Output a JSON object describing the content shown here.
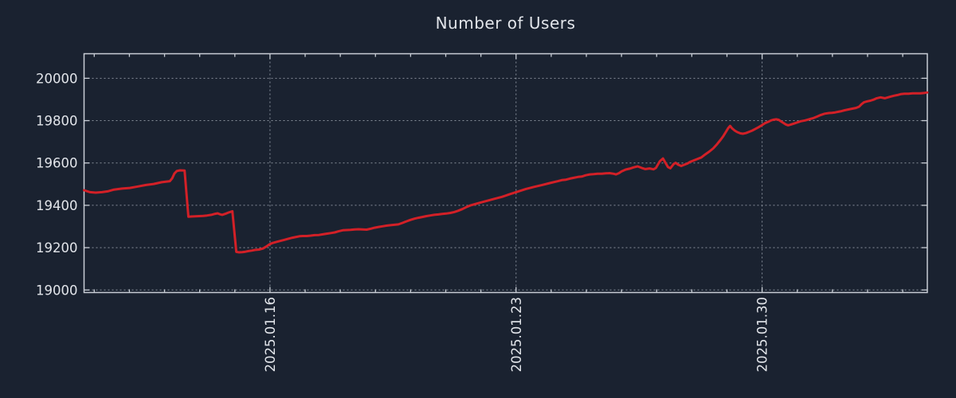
{
  "colors": {
    "background": "#1a2230",
    "plot_border": "#c8cdd5",
    "grid": "#a2a9b4",
    "text": "#e2e5ea",
    "series_red": "#d32027"
  },
  "chart_data": {
    "type": "line",
    "title": "Number of Users",
    "xlabel": "",
    "ylabel": "",
    "legend": "none",
    "grid_style": "dotted",
    "x_axis": {
      "kind": "time",
      "origin_date": "2025-01-10",
      "units": "days_since_origin",
      "range": [
        0.71,
        24.7
      ],
      "major_ticks": [
        {
          "d": 6,
          "label": "2025.01.16"
        },
        {
          "d": 13,
          "label": "2025.01.23"
        },
        {
          "d": 20,
          "label": "2025.01.30"
        }
      ],
      "minor_tick_interval_days": 1,
      "grid": true
    },
    "y_axis": {
      "range": [
        18988,
        20116
      ],
      "tick_values": [
        19000,
        19200,
        19400,
        19600,
        19800,
        20000
      ],
      "tick_step": 200,
      "grid": true
    },
    "series": [
      {
        "name": "Number of Users",
        "color": "#d32027",
        "points": [
          [
            0.71,
            19471
          ],
          [
            0.88,
            19462
          ],
          [
            1.04,
            19460
          ],
          [
            1.22,
            19462
          ],
          [
            1.38,
            19466
          ],
          [
            1.56,
            19474
          ],
          [
            1.79,
            19479
          ],
          [
            2.01,
            19482
          ],
          [
            2.24,
            19489
          ],
          [
            2.47,
            19496
          ],
          [
            2.69,
            19501
          ],
          [
            2.92,
            19509
          ],
          [
            3.15,
            19514
          ],
          [
            3.22,
            19528
          ],
          [
            3.28,
            19550
          ],
          [
            3.35,
            19562
          ],
          [
            3.44,
            19565
          ],
          [
            3.57,
            19564
          ],
          [
            3.68,
            19346
          ],
          [
            3.76,
            19347
          ],
          [
            3.87,
            19348
          ],
          [
            3.99,
            19349
          ],
          [
            4.1,
            19350
          ],
          [
            4.21,
            19352
          ],
          [
            4.33,
            19355
          ],
          [
            4.44,
            19360
          ],
          [
            4.51,
            19362
          ],
          [
            4.57,
            19358
          ],
          [
            4.64,
            19355
          ],
          [
            4.73,
            19360
          ],
          [
            4.82,
            19366
          ],
          [
            4.93,
            19372
          ],
          [
            5.04,
            19180
          ],
          [
            5.12,
            19178
          ],
          [
            5.21,
            19179
          ],
          [
            5.3,
            19181
          ],
          [
            5.39,
            19184
          ],
          [
            5.48,
            19186
          ],
          [
            5.57,
            19189
          ],
          [
            5.69,
            19191
          ],
          [
            5.8,
            19196
          ],
          [
            5.89,
            19205
          ],
          [
            5.98,
            19215
          ],
          [
            6.07,
            19222
          ],
          [
            6.18,
            19227
          ],
          [
            6.3,
            19232
          ],
          [
            6.41,
            19237
          ],
          [
            6.52,
            19242
          ],
          [
            6.64,
            19247
          ],
          [
            6.75,
            19251
          ],
          [
            6.84,
            19254
          ],
          [
            6.93,
            19255
          ],
          [
            7.05,
            19255
          ],
          [
            7.16,
            19257
          ],
          [
            7.27,
            19259
          ],
          [
            7.39,
            19260
          ],
          [
            7.5,
            19263
          ],
          [
            7.61,
            19266
          ],
          [
            7.73,
            19269
          ],
          [
            7.84,
            19272
          ],
          [
            7.95,
            19277
          ],
          [
            8.07,
            19282
          ],
          [
            8.18,
            19283
          ],
          [
            8.29,
            19284
          ],
          [
            8.41,
            19286
          ],
          [
            8.52,
            19287
          ],
          [
            8.63,
            19286
          ],
          [
            8.75,
            19285
          ],
          [
            8.86,
            19289
          ],
          [
            8.97,
            19294
          ],
          [
            9.09,
            19298
          ],
          [
            9.2,
            19301
          ],
          [
            9.31,
            19304
          ],
          [
            9.43,
            19306
          ],
          [
            9.54,
            19308
          ],
          [
            9.65,
            19310
          ],
          [
            9.77,
            19317
          ],
          [
            9.88,
            19324
          ],
          [
            9.99,
            19331
          ],
          [
            10.11,
            19337
          ],
          [
            10.22,
            19341
          ],
          [
            10.33,
            19345
          ],
          [
            10.45,
            19349
          ],
          [
            10.56,
            19352
          ],
          [
            10.67,
            19355
          ],
          [
            10.79,
            19357
          ],
          [
            10.9,
            19359
          ],
          [
            11.01,
            19361
          ],
          [
            11.13,
            19364
          ],
          [
            11.24,
            19368
          ],
          [
            11.35,
            19374
          ],
          [
            11.47,
            19382
          ],
          [
            11.58,
            19391
          ],
          [
            11.69,
            19399
          ],
          [
            11.92,
            19410
          ],
          [
            12.15,
            19420
          ],
          [
            12.37,
            19430
          ],
          [
            12.6,
            19440
          ],
          [
            12.83,
            19453
          ],
          [
            13.06,
            19465
          ],
          [
            13.28,
            19477
          ],
          [
            13.51,
            19487
          ],
          [
            13.74,
            19496
          ],
          [
            13.96,
            19505
          ],
          [
            14.19,
            19514
          ],
          [
            14.3,
            19519
          ],
          [
            14.42,
            19521
          ],
          [
            14.53,
            19526
          ],
          [
            14.64,
            19530
          ],
          [
            14.76,
            19534
          ],
          [
            14.87,
            19536
          ],
          [
            14.98,
            19542
          ],
          [
            15.1,
            19546
          ],
          [
            15.21,
            19547
          ],
          [
            15.32,
            19549
          ],
          [
            15.44,
            19549
          ],
          [
            15.55,
            19551
          ],
          [
            15.66,
            19552
          ],
          [
            15.78,
            19549
          ],
          [
            15.84,
            19546
          ],
          [
            15.93,
            19552
          ],
          [
            16.0,
            19560
          ],
          [
            16.12,
            19569
          ],
          [
            16.23,
            19573
          ],
          [
            16.34,
            19579
          ],
          [
            16.46,
            19584
          ],
          [
            16.57,
            19577
          ],
          [
            16.68,
            19571
          ],
          [
            16.8,
            19574
          ],
          [
            16.91,
            19570
          ],
          [
            16.98,
            19577
          ],
          [
            17.09,
            19608
          ],
          [
            17.18,
            19621
          ],
          [
            17.25,
            19601
          ],
          [
            17.32,
            19581
          ],
          [
            17.39,
            19575
          ],
          [
            17.48,
            19594
          ],
          [
            17.54,
            19601
          ],
          [
            17.61,
            19592
          ],
          [
            17.7,
            19586
          ],
          [
            17.79,
            19592
          ],
          [
            17.88,
            19598
          ],
          [
            17.95,
            19605
          ],
          [
            18.07,
            19613
          ],
          [
            18.18,
            19620
          ],
          [
            18.27,
            19626
          ],
          [
            18.38,
            19640
          ],
          [
            18.5,
            19654
          ],
          [
            18.61,
            19669
          ],
          [
            18.72,
            19689
          ],
          [
            18.82,
            19710
          ],
          [
            18.9,
            19728
          ],
          [
            18.97,
            19747
          ],
          [
            19.04,
            19766
          ],
          [
            19.09,
            19775
          ],
          [
            19.15,
            19763
          ],
          [
            19.22,
            19753
          ],
          [
            19.29,
            19746
          ],
          [
            19.38,
            19740
          ],
          [
            19.45,
            19738
          ],
          [
            19.54,
            19741
          ],
          [
            19.63,
            19747
          ],
          [
            19.72,
            19753
          ],
          [
            19.81,
            19761
          ],
          [
            19.9,
            19769
          ],
          [
            19.99,
            19778
          ],
          [
            20.08,
            19788
          ],
          [
            20.18,
            19795
          ],
          [
            20.25,
            19801
          ],
          [
            20.31,
            19804
          ],
          [
            20.4,
            19806
          ],
          [
            20.47,
            19804
          ],
          [
            20.54,
            19796
          ],
          [
            20.61,
            19789
          ],
          [
            20.67,
            19782
          ],
          [
            20.74,
            19778
          ],
          [
            20.81,
            19781
          ],
          [
            20.9,
            19786
          ],
          [
            20.99,
            19791
          ],
          [
            21.1,
            19797
          ],
          [
            21.22,
            19801
          ],
          [
            21.33,
            19806
          ],
          [
            21.44,
            19811
          ],
          [
            21.56,
            19819
          ],
          [
            21.67,
            19827
          ],
          [
            21.78,
            19833
          ],
          [
            21.9,
            19836
          ],
          [
            21.99,
            19837
          ],
          [
            22.08,
            19839
          ],
          [
            22.17,
            19842
          ],
          [
            22.26,
            19845
          ],
          [
            22.35,
            19849
          ],
          [
            22.47,
            19853
          ],
          [
            22.58,
            19857
          ],
          [
            22.67,
            19860
          ],
          [
            22.76,
            19866
          ],
          [
            22.83,
            19878
          ],
          [
            22.9,
            19887
          ],
          [
            22.99,
            19891
          ],
          [
            23.08,
            19894
          ],
          [
            23.17,
            19899
          ],
          [
            23.26,
            19906
          ],
          [
            23.37,
            19910
          ],
          [
            23.49,
            19906
          ],
          [
            23.58,
            19910
          ],
          [
            23.67,
            19914
          ],
          [
            23.76,
            19918
          ],
          [
            23.85,
            19921
          ],
          [
            23.94,
            19925
          ],
          [
            24.05,
            19927
          ],
          [
            24.17,
            19927
          ],
          [
            24.28,
            19929
          ],
          [
            24.39,
            19929
          ],
          [
            24.51,
            19929
          ],
          [
            24.62,
            19931
          ],
          [
            24.7,
            19933
          ]
        ]
      }
    ]
  }
}
